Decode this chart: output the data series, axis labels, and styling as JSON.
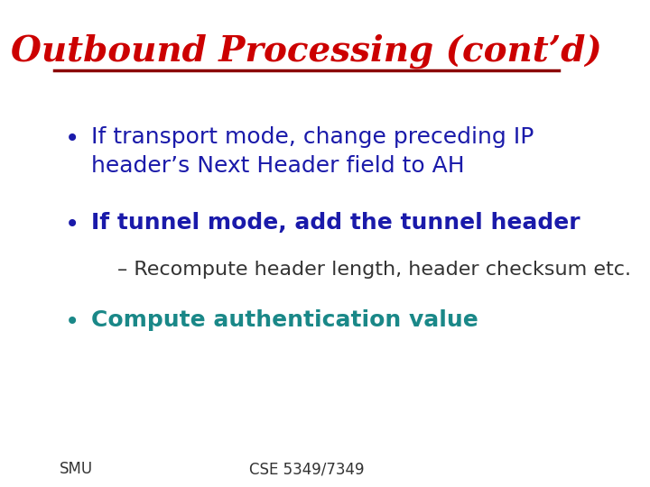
{
  "title": "Outbound Processing (cont’d)",
  "title_color": "#cc0000",
  "title_fontsize": 28,
  "title_font": "serif",
  "line_color": "#8b0000",
  "bg_color": "#ffffff",
  "bullet1": "If transport mode, change preceding IP\nheader’s Next Header field to AH",
  "bullet2": "If tunnel mode, add the tunnel header",
  "sub_bullet": "Recompute header length, header checksum etc.",
  "bullet3": "Compute authentication value",
  "bullet_color": "#1a1aaa",
  "bullet3_color": "#1a8888",
  "sub_bullet_color": "#333333",
  "bullet_fontsize": 18,
  "sub_bullet_fontsize": 16,
  "footer_left": "SMU",
  "footer_right": "CSE 5349/7349",
  "footer_color": "#333333",
  "footer_fontsize": 12
}
